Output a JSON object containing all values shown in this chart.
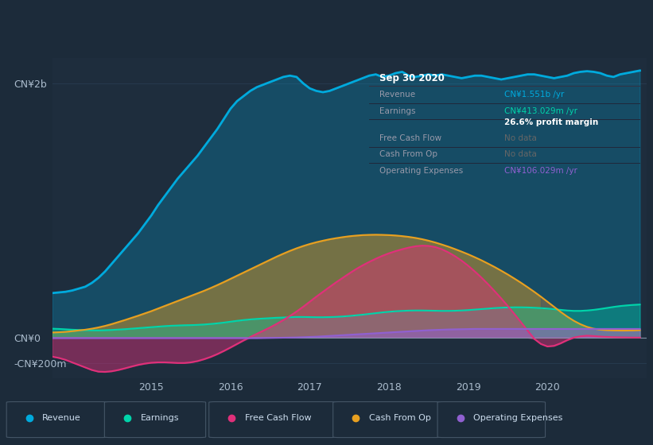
{
  "bg_color": "#1c2b3a",
  "plot_bg_color": "#1e2d3d",
  "grid_color": "#2a3f55",
  "x_labels": [
    "2015",
    "2016",
    "2017",
    "2018",
    "2019",
    "2020"
  ],
  "y_labels": [
    "CN¥2b",
    "CN¥0",
    "-CN¥200m"
  ],
  "y_ticks": [
    2000,
    0,
    -200
  ],
  "ylim": [
    -320,
    2200
  ],
  "xlim": [
    0,
    90
  ],
  "x_tick_pos": [
    15,
    27,
    39,
    51,
    63,
    75
  ],
  "revenue": [
    350,
    355,
    360,
    370,
    385,
    400,
    430,
    470,
    520,
    580,
    640,
    700,
    760,
    820,
    890,
    960,
    1040,
    1110,
    1180,
    1250,
    1310,
    1370,
    1430,
    1500,
    1570,
    1640,
    1720,
    1800,
    1860,
    1900,
    1940,
    1970,
    1990,
    2010,
    2030,
    2050,
    2060,
    2050,
    2000,
    1960,
    1940,
    1930,
    1940,
    1960,
    1980,
    2000,
    2020,
    2040,
    2060,
    2070,
    2050,
    2060,
    2080,
    2090,
    2060,
    2050,
    2060,
    2070,
    2060,
    2070,
    2060,
    2050,
    2040,
    2050,
    2060,
    2060,
    2050,
    2040,
    2030,
    2040,
    2050,
    2060,
    2070,
    2070,
    2060,
    2050,
    2040,
    2050,
    2060,
    2080,
    2090,
    2095,
    2090,
    2080,
    2060,
    2050,
    2070,
    2080,
    2090,
    2100
  ],
  "earnings": [
    70,
    68,
    65,
    62,
    60,
    58,
    57,
    56,
    58,
    60,
    63,
    66,
    70,
    74,
    78,
    82,
    86,
    90,
    93,
    95,
    97,
    98,
    100,
    103,
    107,
    112,
    118,
    125,
    132,
    138,
    143,
    147,
    150,
    153,
    156,
    158,
    160,
    162,
    162,
    161,
    160,
    160,
    161,
    163,
    166,
    170,
    175,
    180,
    186,
    192,
    198,
    203,
    207,
    210,
    212,
    213,
    213,
    212,
    211,
    210,
    210,
    211,
    213,
    216,
    220,
    224,
    228,
    232,
    235,
    237,
    238,
    238,
    237,
    235,
    232,
    228,
    223,
    218,
    213,
    210,
    210,
    213,
    218,
    225,
    233,
    241,
    248,
    253,
    257,
    260
  ],
  "free_cash_flow": [
    -150,
    -160,
    -175,
    -195,
    -215,
    -235,
    -255,
    -268,
    -270,
    -265,
    -255,
    -242,
    -228,
    -215,
    -205,
    -198,
    -195,
    -195,
    -197,
    -200,
    -200,
    -195,
    -185,
    -170,
    -152,
    -130,
    -105,
    -78,
    -50,
    -22,
    5,
    30,
    55,
    80,
    108,
    138,
    170,
    205,
    242,
    282,
    322,
    360,
    398,
    435,
    470,
    505,
    538,
    568,
    595,
    620,
    643,
    663,
    680,
    695,
    708,
    718,
    723,
    721,
    712,
    695,
    670,
    640,
    605,
    565,
    520,
    472,
    420,
    365,
    308,
    248,
    185,
    120,
    55,
    -10,
    -50,
    -70,
    -65,
    -45,
    -20,
    0,
    10,
    15,
    12,
    8,
    5,
    3,
    2,
    1,
    0,
    0
  ],
  "cash_from_op": [
    40,
    42,
    45,
    50,
    56,
    62,
    70,
    80,
    92,
    106,
    122,
    138,
    155,
    172,
    190,
    208,
    228,
    248,
    268,
    288,
    308,
    328,
    348,
    368,
    390,
    413,
    437,
    462,
    487,
    512,
    537,
    562,
    587,
    612,
    637,
    660,
    682,
    702,
    720,
    736,
    750,
    762,
    773,
    782,
    790,
    797,
    802,
    806,
    808,
    809,
    808,
    806,
    803,
    798,
    792,
    784,
    774,
    762,
    748,
    732,
    715,
    696,
    676,
    655,
    632,
    608,
    582,
    555,
    526,
    496,
    464,
    431,
    396,
    360,
    322,
    282,
    242,
    202,
    165,
    132,
    105,
    84,
    70,
    62,
    58,
    56,
    55,
    55,
    56,
    58
  ],
  "operating_expenses": [
    -5,
    -5,
    -5,
    -5,
    -5,
    -5,
    -5,
    -5,
    -5,
    -5,
    -5,
    -5,
    -5,
    -5,
    -5,
    -5,
    -5,
    -5,
    -5,
    -5,
    -5,
    -5,
    -5,
    -5,
    -5,
    -5,
    -5,
    -5,
    -5,
    -5,
    -5,
    -5,
    -4,
    -3,
    -2,
    -1,
    0,
    1,
    3,
    5,
    7,
    10,
    13,
    16,
    19,
    22,
    25,
    28,
    31,
    34,
    37,
    40,
    43,
    46,
    49,
    52,
    55,
    58,
    60,
    62,
    64,
    65,
    66,
    67,
    68,
    68,
    68,
    68,
    68,
    68,
    68,
    68,
    68,
    68,
    68,
    68,
    68,
    68,
    68,
    68,
    68,
    68,
    68,
    68,
    68,
    68,
    68,
    68,
    68,
    68
  ],
  "colors": {
    "revenue": "#00aadd",
    "earnings": "#00d4aa",
    "free_cash_flow": "#e0307a",
    "cash_from_op": "#e8a020",
    "operating_expenses": "#9060d0"
  },
  "legend_items": [
    {
      "label": "Revenue",
      "color": "#00aadd"
    },
    {
      "label": "Earnings",
      "color": "#00d4aa"
    },
    {
      "label": "Free Cash Flow",
      "color": "#e0307a"
    },
    {
      "label": "Cash From Op",
      "color": "#e8a020"
    },
    {
      "label": "Operating Expenses",
      "color": "#9060d0"
    }
  ],
  "info_box": {
    "date": "Sep 30 2020",
    "rows": [
      {
        "label": "Revenue",
        "value": "CN¥1.551b /yr",
        "value_color": "#00aadd"
      },
      {
        "label": "Earnings",
        "value": "CN¥413.029m /yr",
        "value_color": "#00d4aa"
      },
      {
        "label": "",
        "value": "26.6% profit margin",
        "value_color": "#ffffff"
      },
      {
        "label": "Free Cash Flow",
        "value": "No data",
        "value_color": "#666666"
      },
      {
        "label": "Cash From Op",
        "value": "No data",
        "value_color": "#666666"
      },
      {
        "label": "Operating Expenses",
        "value": "CN¥106.029m /yr",
        "value_color": "#9060d0"
      }
    ]
  }
}
